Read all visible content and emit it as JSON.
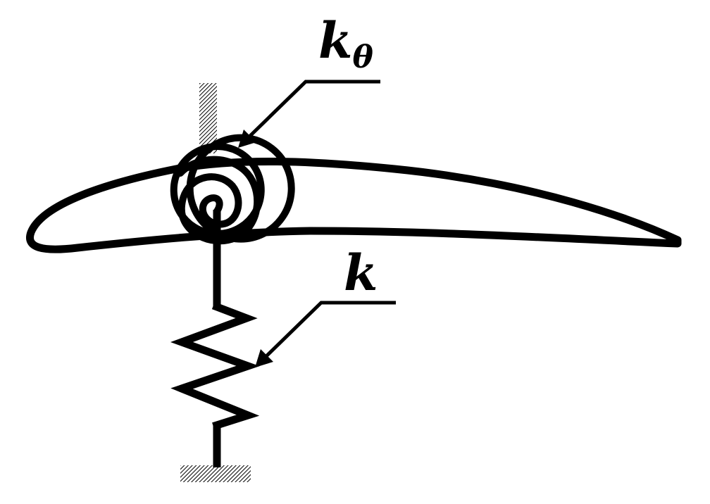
{
  "labels": {
    "torsional_spring": {
      "base": "k",
      "subscript": "θ"
    },
    "plunge_spring": {
      "base": "k"
    }
  },
  "colors": {
    "stroke": "#000000",
    "ground_hatch": "#000000",
    "background": "#ffffff"
  }
}
